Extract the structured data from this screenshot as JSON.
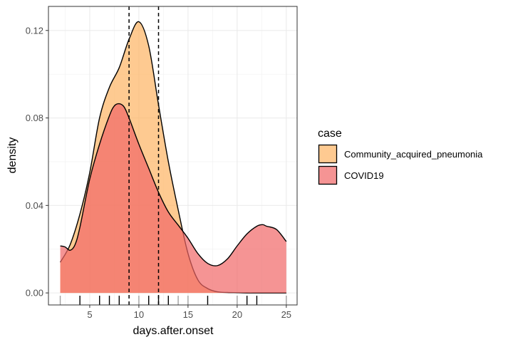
{
  "chart_data": {
    "type": "area",
    "xlabel": "days.after.onset",
    "ylabel": "density",
    "xlim": [
      0.8,
      26.1
    ],
    "ylim": [
      -0.0055,
      0.131
    ],
    "x_ticks": [
      5,
      10,
      15,
      20,
      25
    ],
    "x_tick_labels": [
      "5",
      "10",
      "15",
      "20",
      "25"
    ],
    "y_ticks": [
      0,
      0.04,
      0.08,
      0.12
    ],
    "y_tick_labels": [
      "0.00",
      "0.04",
      "0.08",
      "0.12"
    ],
    "grid": true,
    "legend": {
      "title": "case",
      "position": "right",
      "entries": [
        "Community_acquired_pneumonia",
        "COVID19"
      ]
    },
    "series": [
      {
        "name": "Community_acquired_pneumonia",
        "fill": "#fdb462",
        "fill_opacity": 0.7,
        "x": [
          2,
          3,
          4,
          5,
          6,
          7,
          8,
          9,
          10,
          11,
          12,
          13,
          14,
          15,
          16,
          17,
          18,
          19,
          20,
          21,
          22,
          23,
          24,
          25
        ],
        "y": [
          0.014,
          0.022,
          0.036,
          0.055,
          0.08,
          0.094,
          0.103,
          0.116,
          0.124,
          0.113,
          0.086,
          0.06,
          0.038,
          0.018,
          0.006,
          0.002,
          0.0005,
          0.0002,
          0.0001,
          0,
          0,
          0,
          0,
          0
        ]
      },
      {
        "name": "COVID19",
        "fill": "#f16767",
        "fill_opacity": 0.7,
        "x": [
          2,
          2.5,
          3,
          3.5,
          4,
          5,
          6,
          7,
          7.5,
          8,
          8.5,
          9,
          10,
          11,
          12,
          13,
          14,
          15,
          16,
          17,
          18,
          19,
          20,
          21,
          22,
          22.6,
          23,
          24,
          25
        ],
        "y": [
          0.0215,
          0.021,
          0.0195,
          0.022,
          0.03,
          0.052,
          0.068,
          0.081,
          0.0855,
          0.0865,
          0.085,
          0.08,
          0.068,
          0.057,
          0.046,
          0.037,
          0.031,
          0.025,
          0.018,
          0.0135,
          0.0125,
          0.0155,
          0.0215,
          0.027,
          0.0305,
          0.0312,
          0.0305,
          0.029,
          0.0235
        ]
      }
    ],
    "vlines": [
      {
        "x": 9,
        "style": "dashed",
        "color": "#000000"
      },
      {
        "x": 12,
        "style": "dashed",
        "color": "#000000"
      }
    ],
    "rug": [
      {
        "x": 2,
        "color": "#a0a0a0"
      },
      {
        "x": 4,
        "color": "#000000"
      },
      {
        "x": 6,
        "color": "#000000"
      },
      {
        "x": 7,
        "color": "#000000"
      },
      {
        "x": 8,
        "color": "#000000"
      },
      {
        "x": 10,
        "color": "#a0a0a0"
      },
      {
        "x": 11,
        "color": "#000000"
      },
      {
        "x": 12,
        "color": "#000000"
      },
      {
        "x": 13,
        "color": "#000000"
      },
      {
        "x": 14,
        "color": "#a0a0a0"
      },
      {
        "x": 15,
        "color": "#a0a0a0"
      },
      {
        "x": 17,
        "color": "#000000"
      },
      {
        "x": 20,
        "color": "#a0a0a0"
      },
      {
        "x": 21,
        "color": "#000000"
      },
      {
        "x": 22,
        "color": "#000000"
      },
      {
        "x": 25,
        "color": "#a0a0a0"
      }
    ]
  }
}
